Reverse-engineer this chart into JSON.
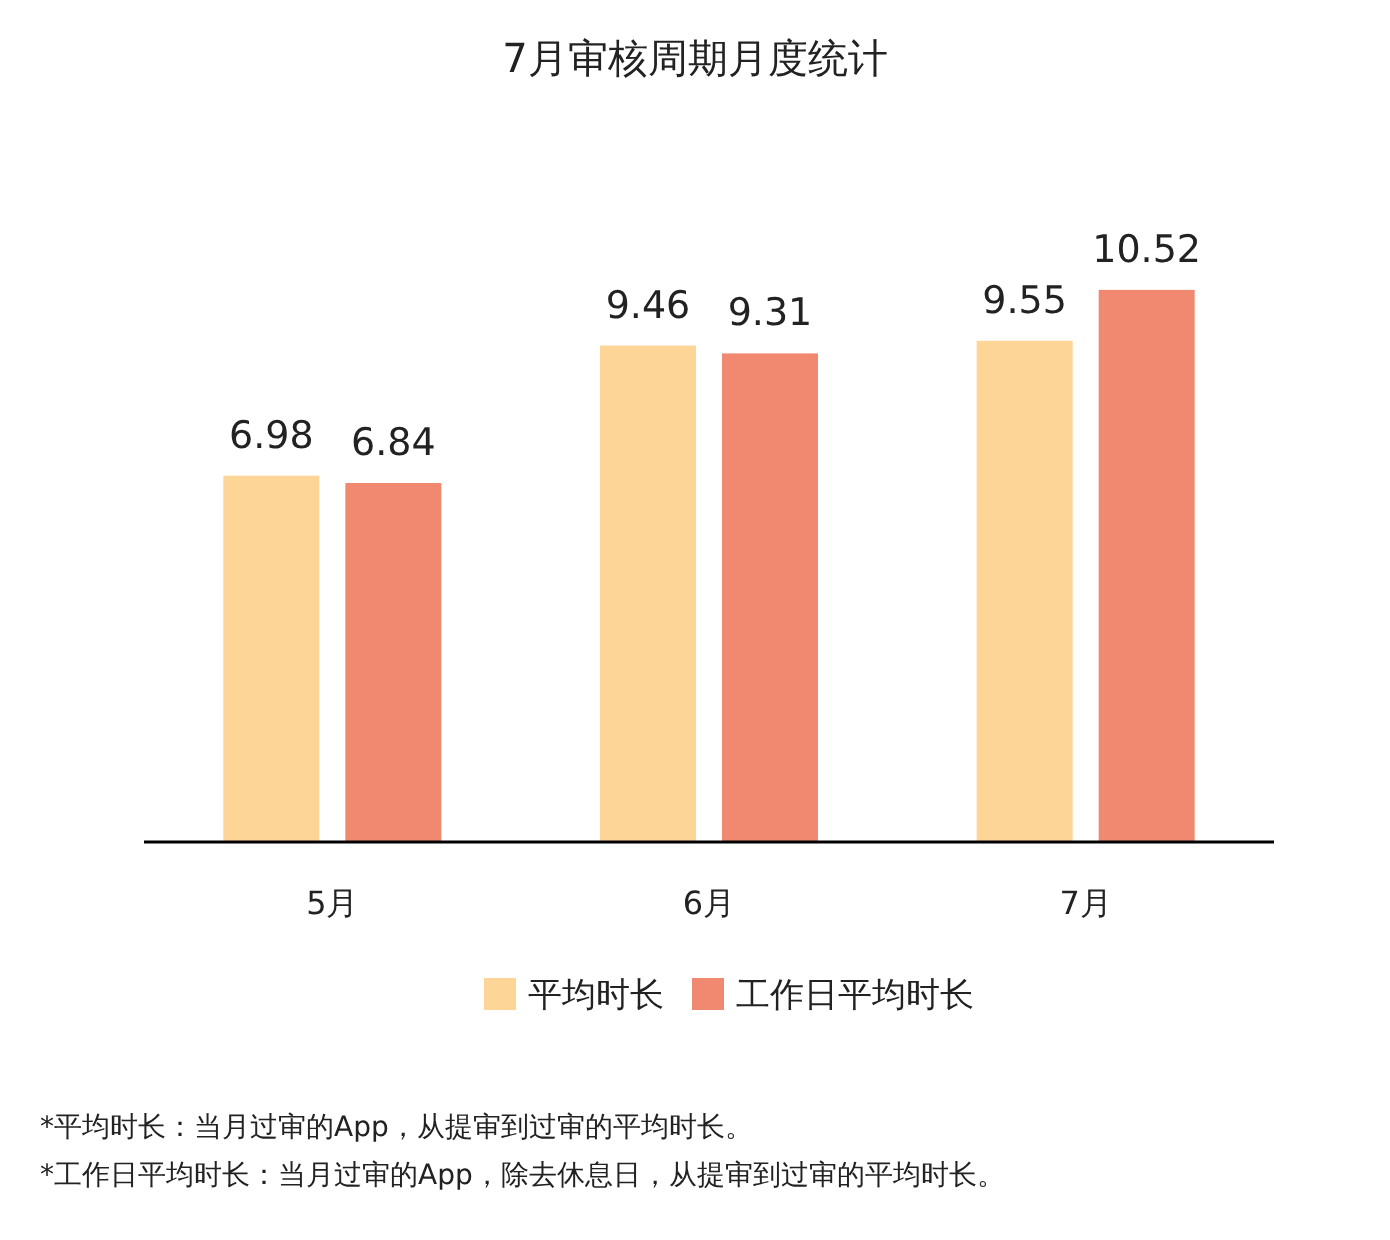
{
  "chart_data": {
    "type": "bar",
    "title": "7月审核周期月度统计",
    "categories": [
      "5月",
      "6月",
      "7月"
    ],
    "series": [
      {
        "name": "平均时长",
        "color": "#fdd597",
        "values": [
          6.98,
          9.46,
          9.55
        ]
      },
      {
        "name": "工作日平均时长",
        "color": "#f0896f",
        "values": [
          6.84,
          9.31,
          10.52
        ]
      }
    ],
    "data_labels": true,
    "legend": "bottom",
    "annotations": [
      "*平均时长：当月过审的App，从提审到过审的平均时长。",
      "*工作日平均时长：当月过审的App，除去休息日，从提审到过审的平均时长。"
    ]
  }
}
